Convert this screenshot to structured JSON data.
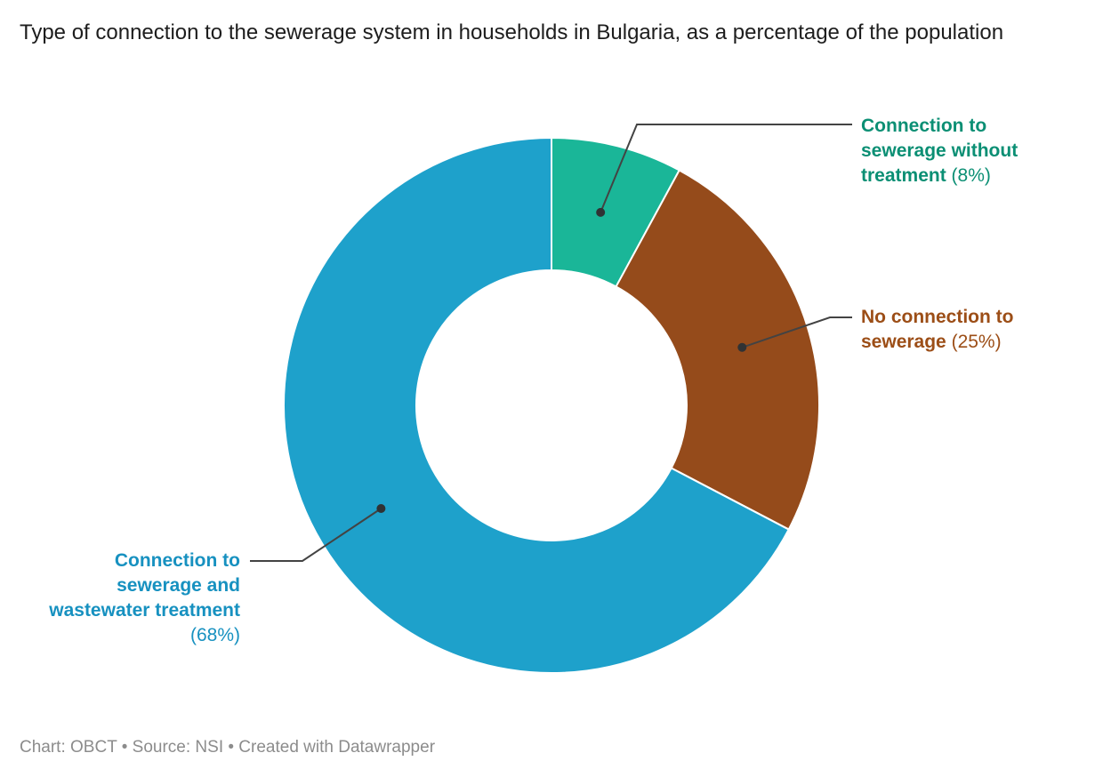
{
  "header": {
    "title": "Type of connection to the sewerage system in households in Bulgaria, as a percentage of the population"
  },
  "footer": {
    "text": "Chart: OBCT • Source: NSI • Created with Datawrapper"
  },
  "chart_data": {
    "type": "pie",
    "subtype": "donut",
    "title": "Type of connection to the sewerage system in households in Bulgaria, as a percentage of the population",
    "unit": "% of population",
    "direction": "clockwise",
    "start_angle_deg": 0,
    "inner_radius_ratio": 0.5,
    "legend_position": "outside-leader-labels",
    "leader_line_color": "#434343",
    "leader_dot_color": "#303234",
    "slice_separator_color": "#ffffff",
    "slices": [
      {
        "name": "Connection to sewerage without treatment",
        "value_pct": 8,
        "value_display": "(8%)",
        "value_new_line": false,
        "label_lines": [
          "Connection to",
          "sewerage without",
          "treatment"
        ],
        "color": "#1ab698",
        "label_color": "#0b8f74"
      },
      {
        "name": "No connection to sewerage",
        "value_pct": 25,
        "value_display": "(25%)",
        "value_new_line": false,
        "label_lines": [
          "No connection to",
          "sewerage"
        ],
        "color": "#954b1b",
        "label_color": "#9c4e17"
      },
      {
        "name": "Connection to sewerage and wastewater treatment",
        "value_pct": 68,
        "value_display": "(68%)",
        "value_new_line": true,
        "label_lines": [
          "Connection to",
          "sewerage and",
          "wastewater treatment"
        ],
        "color": "#1ea1cb",
        "label_color": "#1791c0"
      }
    ]
  }
}
